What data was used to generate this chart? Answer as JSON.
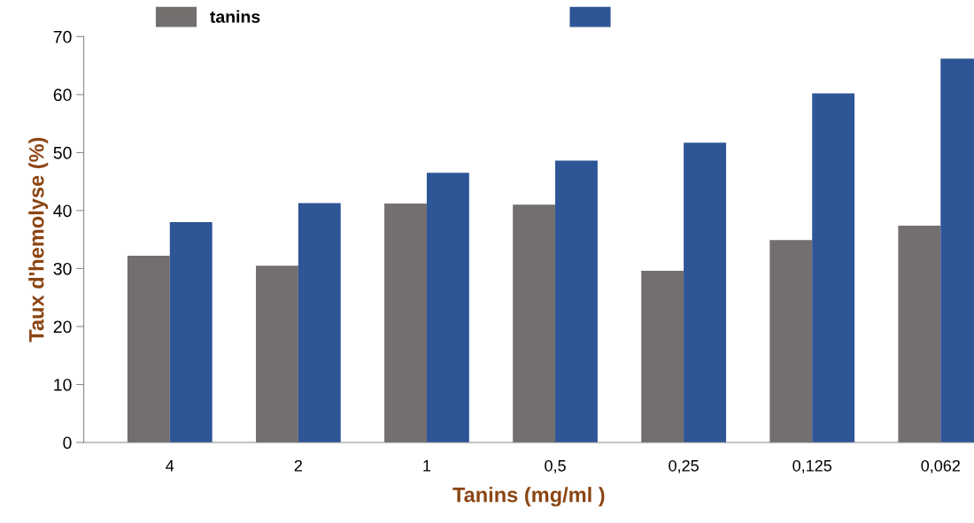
{
  "chart_data": {
    "type": "bar",
    "xlabel": "Tanins (mg/ml )",
    "ylabel": "Taux d'hemolyse (%)",
    "categories": [
      "4",
      "2",
      "1",
      "0,5",
      "0,25",
      "0,125",
      "0,062"
    ],
    "series": [
      {
        "name": "tanins",
        "color": "#736f6e",
        "values": [
          32.2,
          30.5,
          41.2,
          41.0,
          29.6,
          34.9,
          37.4
        ]
      },
      {
        "color": "#2e5596",
        "values": [
          38.0,
          41.3,
          46.5,
          48.6,
          51.7,
          60.2,
          66.2
        ]
      }
    ],
    "ylim": [
      0,
      70
    ],
    "yticks": [
      0,
      10,
      20,
      30,
      40,
      50,
      60,
      70
    ],
    "grid": false,
    "legend": "top"
  }
}
